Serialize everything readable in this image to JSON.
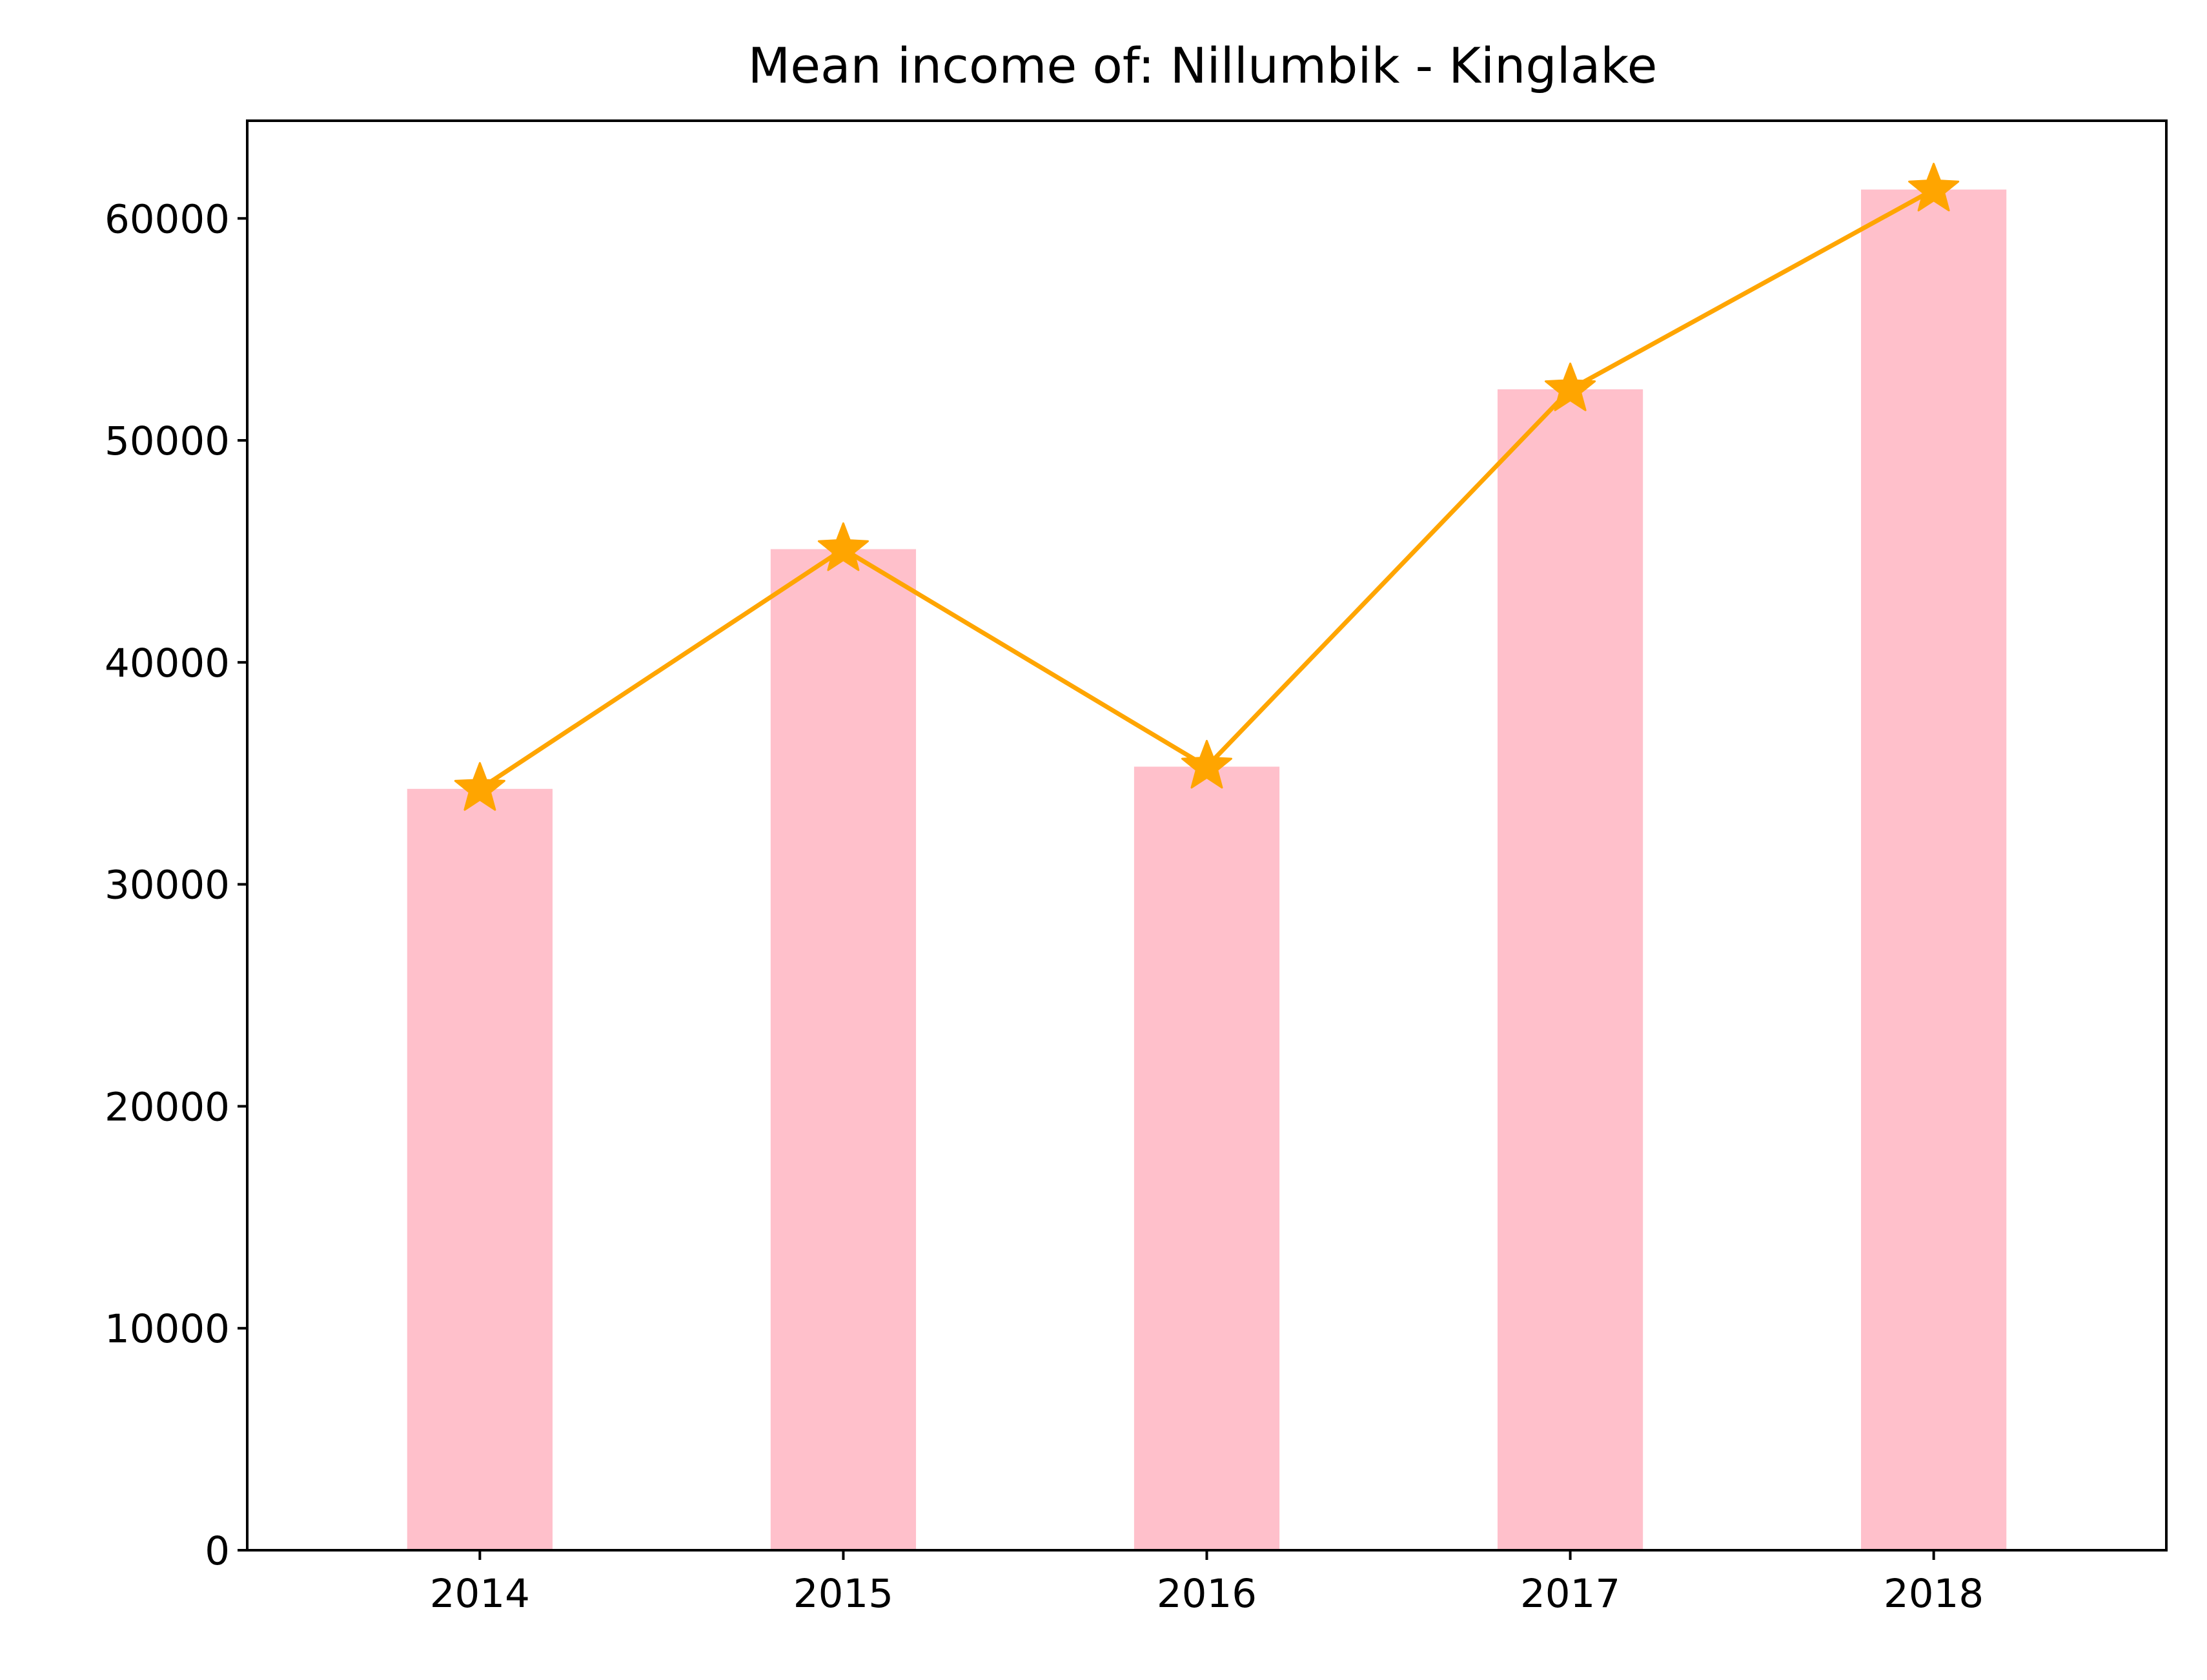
{
  "chart_data": {
    "type": "bar",
    "title": "Mean income of: Nillumbik - Kinglake",
    "xlabel": "",
    "ylabel": "",
    "categories": [
      "2014",
      "2015",
      "2016",
      "2017",
      "2018"
    ],
    "ylim": [
      0,
      64400
    ],
    "yticks": [
      0,
      10000,
      20000,
      30000,
      40000,
      50000,
      60000
    ],
    "ytick_labels": [
      "0",
      "10000",
      "20000",
      "30000",
      "40000",
      "50000",
      "60000"
    ],
    "grid": false,
    "legend": "none",
    "series": [
      {
        "kind": "bar",
        "color": "#ffc0cb",
        "values": [
          34300,
          45100,
          35300,
          52300,
          61300
        ]
      },
      {
        "kind": "line",
        "marker": "star",
        "color": "#ffa500",
        "values": [
          34300,
          45100,
          35300,
          52300,
          61300
        ]
      }
    ]
  }
}
